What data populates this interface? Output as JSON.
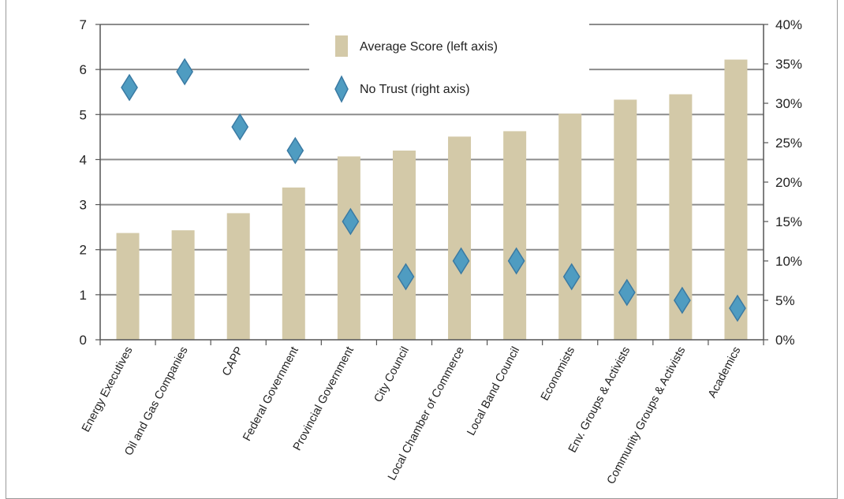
{
  "chart_data": {
    "type": "bar",
    "categories": [
      "Energy Executives",
      "Oil and Gas Companies",
      "CAPP",
      "Federal Government",
      "Provincial Government",
      "City Council",
      "Local Chamber of Commerce",
      "Local Band Council",
      "Economists",
      "Env. Groups & Activists",
      "Community Groups & Activists",
      "Academics"
    ],
    "series": [
      {
        "name": "Average Score (left axis)",
        "kind": "bar",
        "axis": "left",
        "color": "#d3c9a8",
        "values": [
          2.37,
          2.43,
          2.81,
          3.38,
          4.07,
          4.2,
          4.51,
          4.63,
          5.02,
          5.33,
          5.45,
          6.22
        ]
      },
      {
        "name": "No Trust (right axis)",
        "kind": "scatter",
        "axis": "right",
        "color": "#4f9cc1",
        "values": [
          0.32,
          0.34,
          0.27,
          0.24,
          0.15,
          0.08,
          0.1,
          0.1,
          0.08,
          0.06,
          0.05,
          0.04
        ]
      }
    ],
    "y_left": {
      "ticks": [
        "0",
        "1",
        "2",
        "3",
        "4",
        "5",
        "6",
        "7"
      ],
      "ylim": [
        0,
        7
      ]
    },
    "y_right": {
      "ticks": [
        "0%",
        "5%",
        "10%",
        "15%",
        "20%",
        "25%",
        "30%",
        "35%",
        "40%"
      ],
      "ylim": [
        0,
        0.4
      ]
    },
    "grid": true,
    "legend_position": "top-center"
  }
}
